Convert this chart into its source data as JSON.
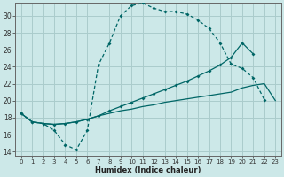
{
  "xlabel": "Humidex (Indice chaleur)",
  "bg_color": "#cce8e8",
  "line_color": "#006666",
  "grid_color": "#aacccc",
  "ylim": [
    13.5,
    31.5
  ],
  "xlim": [
    -0.5,
    23.5
  ],
  "yticks": [
    14,
    16,
    18,
    20,
    22,
    24,
    26,
    28,
    30
  ],
  "xticks": [
    0,
    1,
    2,
    3,
    4,
    5,
    6,
    7,
    8,
    9,
    10,
    11,
    12,
    13,
    14,
    15,
    16,
    17,
    18,
    19,
    20,
    21,
    22,
    23
  ],
  "curve1_x": [
    0,
    1,
    2,
    3,
    4,
    5,
    6,
    7,
    8,
    9,
    10,
    11,
    12,
    13,
    14,
    15,
    16,
    17,
    18,
    19,
    20,
    21,
    22,
    23
  ],
  "curve1_y": [
    18.5,
    17.5,
    17.3,
    16.5,
    14.8,
    14.2,
    16.5,
    24.2,
    26.8,
    30.0,
    31.2,
    31.5,
    30.9,
    30.5,
    30.5,
    30.2,
    29.5,
    28.5,
    26.8,
    24.3,
    23.8,
    22.7,
    20.1,
    null
  ],
  "curve2_x": [
    0,
    1,
    2,
    3,
    4,
    5,
    6,
    7,
    8,
    9,
    10,
    11,
    12,
    13,
    14,
    15,
    16,
    17,
    18,
    19,
    20,
    21,
    22,
    23
  ],
  "curve2_y": [
    18.5,
    17.5,
    17.3,
    17.2,
    17.3,
    17.5,
    17.8,
    18.2,
    18.8,
    19.3,
    19.8,
    20.3,
    20.8,
    21.3,
    21.8,
    22.3,
    22.9,
    23.5,
    24.2,
    25.1,
    26.8,
    25.5,
    null,
    null
  ],
  "curve3_x": [
    0,
    1,
    2,
    3,
    4,
    5,
    6,
    7,
    8,
    9,
    10,
    11,
    12,
    13,
    14,
    15,
    16,
    17,
    18,
    19,
    20,
    21,
    22,
    23
  ],
  "curve3_y": [
    18.5,
    17.5,
    17.3,
    17.2,
    17.3,
    17.5,
    17.8,
    18.2,
    18.5,
    18.8,
    19.0,
    19.3,
    19.5,
    19.8,
    20.0,
    20.2,
    20.4,
    20.6,
    20.8,
    21.0,
    21.5,
    21.8,
    22.0,
    20.0
  ]
}
